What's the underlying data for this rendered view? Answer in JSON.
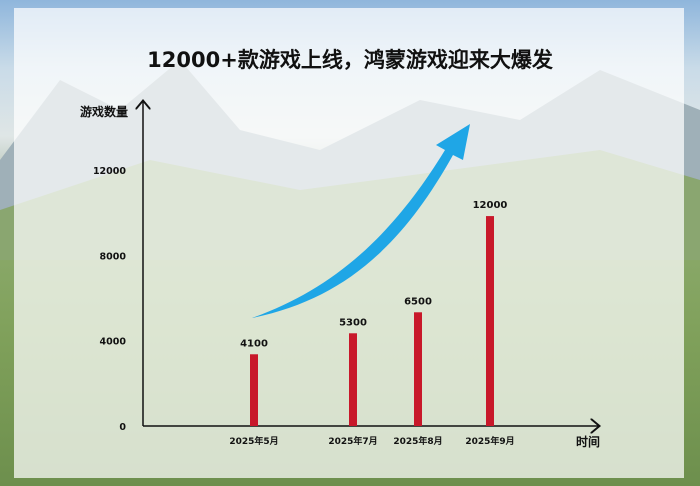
{
  "title": "12000+款游戏上线，鸿蒙游戏迎来大爆发",
  "colors": {
    "bar": "#c8182a",
    "arrow": "#1fa6e6",
    "axis": "#111111"
  },
  "chart_data": {
    "type": "bar",
    "title": "12000+款游戏上线，鸿蒙游戏迎来大爆发",
    "xlabel": "时间",
    "ylabel": "游戏数量",
    "categories": [
      "2025年5月",
      "2025年7月",
      "2025年8月",
      "2025年9月"
    ],
    "values": [
      4100,
      5300,
      6500,
      12000
    ],
    "data_labels": [
      "4100",
      "5300",
      "6500",
      "12000"
    ],
    "yticks": [
      "0",
      "4000",
      "8000",
      "12000"
    ],
    "ylim": [
      0,
      14000
    ],
    "grid": false,
    "annotation": "blue upward trend arrow"
  }
}
